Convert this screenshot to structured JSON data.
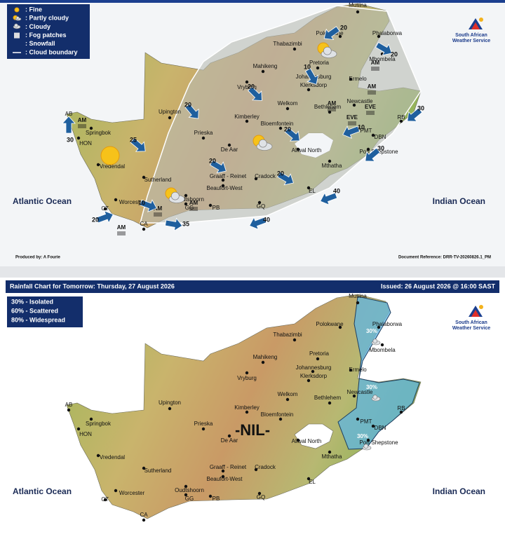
{
  "logo": [
    "South African",
    "Weather Service"
  ],
  "oceans": [
    "Atlantic Ocean",
    "Indian Ocean"
  ],
  "places": [
    "Musina",
    "Polokwane",
    "Phalaborwa",
    "Thabazimbi",
    "Pretoria",
    "Mahikeng",
    "Johannesburg",
    "Klerksdorp",
    "Vryburg",
    "Ermelo",
    "Mbombela",
    "Welkom",
    "Bethlehem",
    "Newcastle",
    "Upington",
    "Kimberley",
    "Bloemfontein",
    "Springbok",
    "HON",
    "Prieska",
    "De Aar",
    "Aliwal North",
    "PMT",
    "DBN",
    "Port Shepstone",
    "Vredendal",
    "Sutherland",
    "Graaff - Reinet",
    "Cradock",
    "Mthatha",
    "Beaufort-West",
    "EL",
    "Worcester",
    "CT",
    "Oudtshoorn",
    "GG",
    "PB",
    "GQ",
    "CA",
    "RB",
    "AB"
  ],
  "forecast_map": {
    "legend": [
      ": Fine",
      ": Partly cloudy",
      ": Cloudy",
      ": Fog patches",
      ": Snowfall",
      ": Cloud boundary"
    ],
    "wind_speeds": [
      20,
      20,
      10,
      20,
      20,
      25,
      30,
      20,
      20,
      20,
      10,
      30,
      30,
      40,
      40,
      35,
      10,
      20
    ],
    "fog_markers": [
      "AM",
      "AM",
      "AM",
      "AM",
      "AM",
      "AM",
      "AM",
      "EVE",
      "EVE"
    ],
    "produced_by": "Produced by: A Fourie",
    "document_reference": "Document Reference: DRR-TV-20260826.1_PM"
  },
  "rainfall_chart": {
    "title": "Rainfall Chart for Tomorrow: Thursday, 27 August 2026",
    "issued": "Issued: 26 August 2026 @ 16:00 SAST",
    "legend": [
      "30% - Isolated",
      "60% - Scattered",
      "80% - Widespread"
    ],
    "nil_label": "-NIL-",
    "rain_labels": [
      "30%",
      "30%",
      "30%"
    ]
  }
}
